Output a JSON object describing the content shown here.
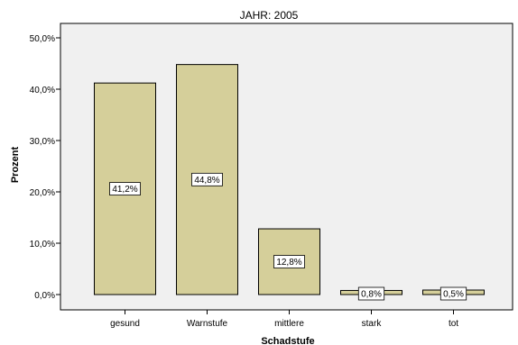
{
  "chart_data": {
    "type": "bar",
    "title": "JAHR: 2005",
    "xlabel": "Schadstufe",
    "ylabel": "Prozent",
    "categories": [
      "gesund",
      "Warnstufe",
      "mittlere",
      "stark",
      "tot"
    ],
    "values": [
      41.2,
      44.8,
      12.8,
      0.8,
      0.5
    ],
    "value_labels": [
      "41,2%",
      "44,8%",
      "12,8%",
      "0,8%",
      "0,5%"
    ],
    "ylim": [
      0,
      52
    ],
    "yticks": [
      0,
      10,
      20,
      30,
      40,
      50
    ],
    "ytick_labels": [
      "0,0%",
      "10,0%",
      "20,0%",
      "30,0%",
      "40,0%",
      "50,0%"
    ],
    "grid": false,
    "colors": {
      "bar_fill": "#d5cf9a",
      "plot_background": "#f0f0f0",
      "axis": "#000000"
    }
  }
}
